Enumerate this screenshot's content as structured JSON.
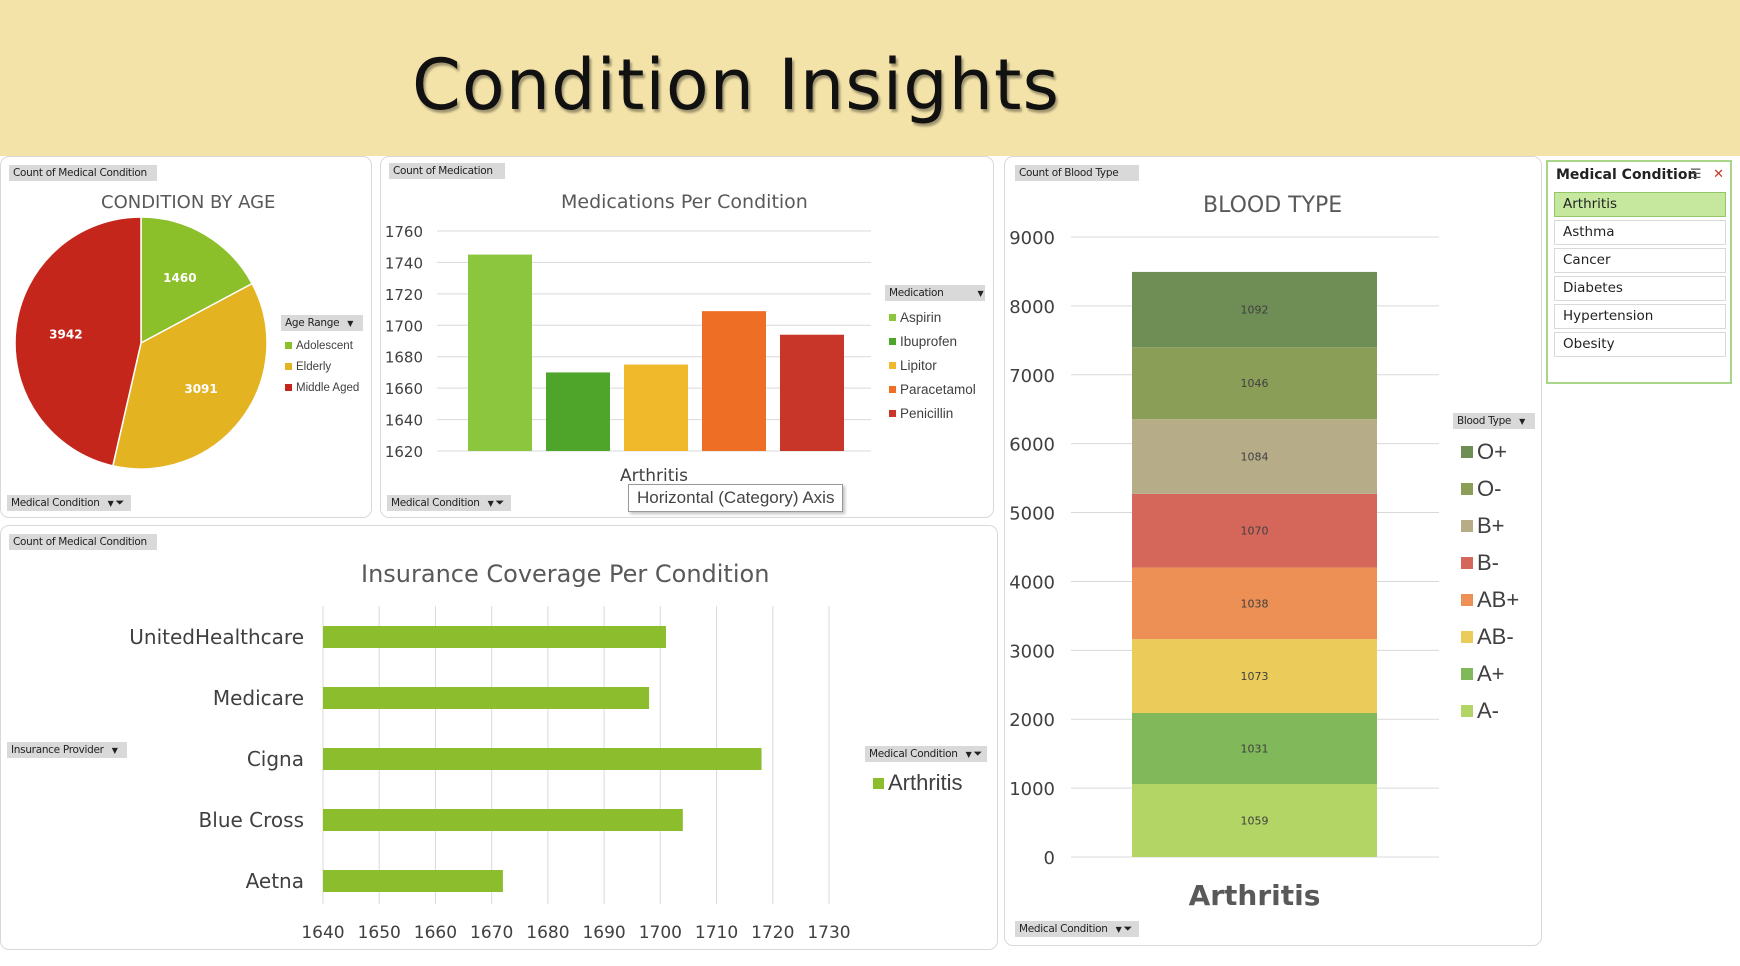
{
  "page": {
    "title": "Condition Insights"
  },
  "colors": {
    "header_bg": "#f3e3a9",
    "accent_green": "#8cbd2d",
    "selected_slicer": "#c6e89e"
  },
  "age_panel": {
    "value_button": "Count of Medical Condition",
    "filter_button": "Medical Condition",
    "legend_button": "Age Range",
    "title": "CONDITION BY AGE",
    "chart_data": {
      "type": "pie",
      "title": "CONDITION BY AGE",
      "series": [
        {
          "name": "Adolescent",
          "value": 1460,
          "color": "#8cc02b"
        },
        {
          "name": "Elderly",
          "value": 3091,
          "color": "#e3b321"
        },
        {
          "name": "Middle Aged",
          "value": 3942,
          "color": "#c4261c"
        }
      ],
      "legend_position": "right",
      "data_labels": true
    }
  },
  "medication_panel": {
    "value_button": "Count of Medication",
    "filter_button": "Medical Condition",
    "legend_button": "Medication",
    "title": "Medications Per Condition",
    "axis_label": "Arthritis",
    "tooltip": "Horizontal (Category) Axis",
    "chart_data": {
      "type": "bar",
      "title": "Medications Per Condition",
      "categories": [
        "Arthritis"
      ],
      "series": [
        {
          "name": "Aspirin",
          "values": [
            1745
          ],
          "color": "#8cc63f"
        },
        {
          "name": "Ibuprofen",
          "values": [
            1670
          ],
          "color": "#4fa52a"
        },
        {
          "name": "Lipitor",
          "values": [
            1675
          ],
          "color": "#f0b92b"
        },
        {
          "name": "Paracetamol",
          "values": [
            1709
          ],
          "color": "#ee6e25"
        },
        {
          "name": "Penicillin",
          "values": [
            1694
          ],
          "color": "#c8362a"
        }
      ],
      "ylim": [
        1620,
        1760
      ],
      "yticks": [
        1620,
        1640,
        1660,
        1680,
        1700,
        1720,
        1740,
        1760
      ],
      "grid": true,
      "legend_position": "right"
    }
  },
  "insurance_panel": {
    "value_button": "Count of Medical Condition",
    "row_button": "Insurance Provider",
    "legend_button": "Medical Condition",
    "title": "Insurance Coverage Per Condition",
    "chart_data": {
      "type": "bar",
      "orientation": "horizontal",
      "title": "Insurance Coverage Per Condition",
      "categories": [
        "UnitedHealthcare",
        "Medicare",
        "Cigna",
        "Blue Cross",
        "Aetna"
      ],
      "series": [
        {
          "name": "Arthritis",
          "values": [
            1701,
            1698,
            1718,
            1704,
            1672
          ],
          "color": "#8cbd2d"
        }
      ],
      "xlim": [
        1640,
        1730
      ],
      "xticks": [
        1640,
        1650,
        1660,
        1670,
        1680,
        1690,
        1700,
        1710,
        1720,
        1730
      ],
      "grid": true,
      "legend_position": "right"
    }
  },
  "blood_panel": {
    "value_button": "Count of Blood Type",
    "filter_button": "Medical Condition",
    "legend_button": "Blood Type",
    "title": "BLOOD TYPE",
    "category_label": "Arthritis",
    "chart_data": {
      "type": "bar",
      "stacked": true,
      "title": "BLOOD TYPE",
      "categories": [
        "Arthritis"
      ],
      "series": [
        {
          "name": "A-",
          "values": [
            1059
          ],
          "color": "#b2d565"
        },
        {
          "name": "A+",
          "values": [
            1031
          ],
          "color": "#80b85a"
        },
        {
          "name": "AB-",
          "values": [
            1073
          ],
          "color": "#ebcb5a"
        },
        {
          "name": "AB+",
          "values": [
            1038
          ],
          "color": "#ed9055"
        },
        {
          "name": "B-",
          "values": [
            1070
          ],
          "color": "#d4675a"
        },
        {
          "name": "B+",
          "values": [
            1084
          ],
          "color": "#b6ad88"
        },
        {
          "name": "O-",
          "values": [
            1046
          ],
          "color": "#8a9e58"
        },
        {
          "name": "O+",
          "values": [
            1092
          ],
          "color": "#6e8e55"
        }
      ],
      "legend_order": [
        "O+",
        "O-",
        "B+",
        "B-",
        "AB+",
        "AB-",
        "A+",
        "A-"
      ],
      "ylim": [
        0,
        9000
      ],
      "yticks": [
        0,
        1000,
        2000,
        3000,
        4000,
        5000,
        6000,
        7000,
        8000,
        9000
      ],
      "grid": true,
      "legend_position": "right"
    }
  },
  "slicer": {
    "header": "Medical Condition",
    "items": [
      "Arthritis",
      "Asthma",
      "Cancer",
      "Diabetes",
      "Hypertension",
      "Obesity"
    ],
    "selected": "Arthritis"
  }
}
